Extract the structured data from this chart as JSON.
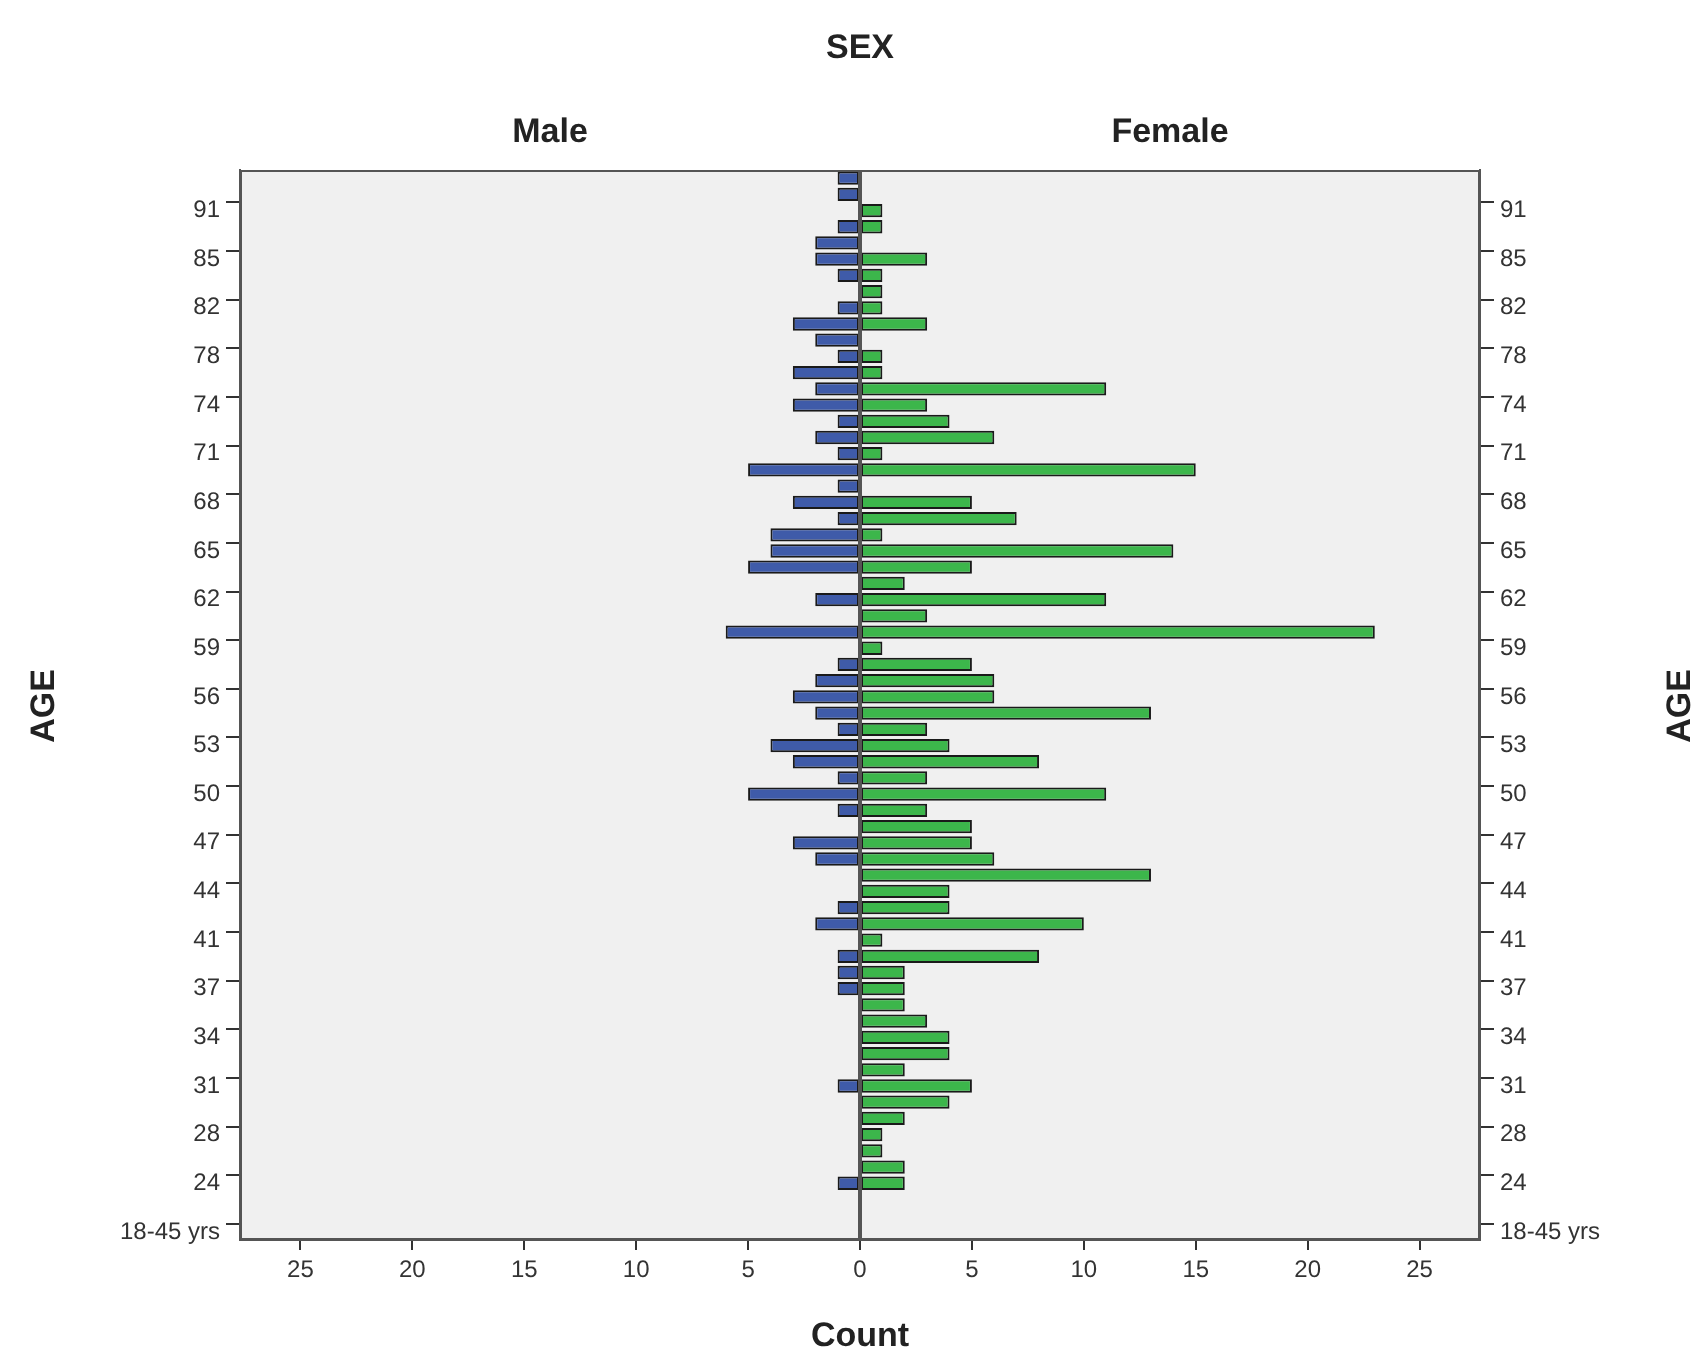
{
  "chart_data": [
    {
      "type": "bar",
      "orientation": "horizontal",
      "title": "SEX",
      "subtitle": "Male",
      "ylabel": "AGE",
      "categories": [
        null,
        null,
        "91",
        null,
        null,
        "85",
        null,
        null,
        "82",
        null,
        null,
        "78",
        null,
        null,
        "74",
        null,
        null,
        "71",
        null,
        null,
        "68",
        null,
        null,
        "65",
        null,
        null,
        "62",
        null,
        null,
        "59",
        null,
        null,
        "56",
        null,
        null,
        "53",
        null,
        null,
        "50",
        null,
        null,
        "47",
        null,
        null,
        "44",
        null,
        null,
        "41",
        null,
        null,
        "37",
        null,
        null,
        "34",
        null,
        null,
        "31",
        null,
        null,
        "28",
        null,
        null,
        "24",
        null,
        null,
        "18-45 yrs"
      ],
      "series": [
        {
          "color": "#3f5ba9",
          "values": [
            1,
            1,
            null,
            1,
            2,
            2,
            1,
            null,
            1,
            3,
            2,
            1,
            3,
            2,
            3,
            1,
            2,
            1,
            5,
            1,
            3,
            1,
            4,
            4,
            5,
            null,
            2,
            null,
            6,
            null,
            1,
            2,
            3,
            2,
            1,
            4,
            3,
            1,
            5,
            1,
            null,
            3,
            2,
            null,
            null,
            1,
            2,
            null,
            1,
            1,
            1,
            null,
            null,
            null,
            null,
            null,
            1,
            null,
            null,
            null,
            null,
            null,
            1,
            null,
            null,
            null
          ]
        }
      ],
      "xlim": [
        27.7,
        0
      ],
      "xticks": [
        25,
        20,
        15,
        10,
        5,
        {
          "value": 0,
          "label": null
        }
      ]
    },
    {
      "type": "bar",
      "orientation": "horizontal",
      "subtitle": "Female",
      "ylabel": "AGE",
      "xlabel": "Count",
      "categories": [
        null,
        null,
        "91",
        null,
        null,
        "85",
        null,
        null,
        "82",
        null,
        null,
        "78",
        null,
        null,
        "74",
        null,
        null,
        "71",
        null,
        null,
        "68",
        null,
        null,
        "65",
        null,
        null,
        "62",
        null,
        null,
        "59",
        null,
        null,
        "56",
        null,
        null,
        "53",
        null,
        null,
        "50",
        null,
        null,
        "47",
        null,
        null,
        "44",
        null,
        null,
        "41",
        null,
        null,
        "37",
        null,
        null,
        "34",
        null,
        null,
        "31",
        null,
        null,
        "28",
        null,
        null,
        "24",
        null,
        null,
        "18-45 yrs"
      ],
      "series": [
        {
          "color": "#3cb64b",
          "values": [
            null,
            null,
            1,
            1,
            null,
            3,
            1,
            1,
            1,
            3,
            null,
            1,
            1,
            11,
            3,
            4,
            6,
            1,
            15,
            null,
            5,
            7,
            1,
            14,
            5,
            2,
            11,
            3,
            23,
            1,
            5,
            6,
            6,
            13,
            3,
            4,
            8,
            3,
            11,
            3,
            5,
            5,
            6,
            13,
            4,
            4,
            10,
            1,
            8,
            2,
            2,
            2,
            3,
            4,
            4,
            2,
            5,
            4,
            2,
            1,
            1,
            2,
            2,
            null,
            null,
            null
          ]
        }
      ],
      "xlim": [
        0,
        27.7
      ],
      "xticks": [
        0,
        5,
        10,
        15,
        20,
        25
      ]
    }
  ]
}
